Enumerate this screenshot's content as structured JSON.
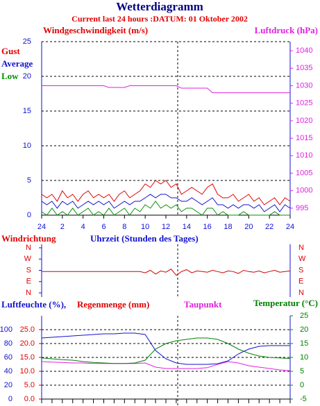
{
  "header": {
    "title": "Wetterdiagramm",
    "subtitle": "Current last 24 hours :DATUM: 01 Oktober 2002"
  },
  "chart_data": [
    {
      "type": "line",
      "y_label": "Windgeschwindigkeit (m/s)",
      "x": [
        0,
        0.5,
        1,
        1.5,
        2,
        2.5,
        3,
        3.5,
        4,
        4.5,
        5,
        5.5,
        6,
        6.5,
        7,
        7.5,
        8,
        8.5,
        9,
        9.5,
        10,
        10.5,
        11,
        11.5,
        12,
        12.5,
        13,
        13.5,
        14,
        14.5,
        15,
        15.5,
        16,
        16.5,
        17,
        17.5,
        18,
        18.5,
        19,
        19.5,
        20,
        20.5,
        21,
        21.5,
        22,
        22.5,
        23,
        23.5,
        24
      ],
      "xlim": [
        0,
        24
      ],
      "xticks": [
        {
          "value": 0,
          "label": "24"
        },
        2,
        4,
        6,
        8,
        10,
        12,
        14,
        16,
        18,
        20,
        22,
        24
      ],
      "ylim": [
        0,
        25
      ],
      "yticks": [
        0,
        5,
        10,
        15,
        20,
        25
      ],
      "y2lim": [
        993,
        1042.6
      ],
      "y2ticks": [
        995,
        1000,
        1005,
        1010,
        1015,
        1020,
        1025,
        1030,
        1035,
        1040
      ],
      "grid": true,
      "series": [
        {
          "name": "Gust",
          "color": "#e00000",
          "values": [
            3,
            2.5,
            3,
            2,
            3.5,
            2.5,
            3,
            2,
            3,
            3.5,
            2.5,
            3,
            2.5,
            3,
            2,
            3,
            3.5,
            2.5,
            3,
            3.5,
            4.5,
            4,
            5,
            4.5,
            5,
            4,
            4.5,
            3,
            3.5,
            4,
            3.5,
            3,
            4,
            4.5,
            3,
            2.5,
            2.5,
            3,
            2,
            2.5,
            3,
            2,
            2.5,
            1.5,
            2,
            2.5,
            1.5,
            2.5,
            2
          ]
        },
        {
          "name": "Average",
          "color": "#1010d0",
          "values": [
            2,
            1.5,
            2,
            1,
            2,
            1.5,
            2,
            1,
            1.5,
            2,
            1.5,
            2,
            1.5,
            2,
            1,
            1.5,
            2,
            1.5,
            2,
            2,
            2.5,
            3,
            2.5,
            3,
            3,
            2.5,
            2.5,
            2,
            2,
            2.5,
            2,
            1.5,
            2,
            2.5,
            1.5,
            1.5,
            1,
            1.5,
            1,
            1.5,
            1.5,
            1,
            1.5,
            0.5,
            1,
            1.5,
            0.5,
            1.5,
            1
          ]
        },
        {
          "name": "Low",
          "color": "#009000",
          "values": [
            0.5,
            0,
            1,
            0,
            0.5,
            0,
            1,
            0,
            0.5,
            1,
            0,
            0.5,
            0,
            1,
            0,
            0.5,
            1,
            0,
            1,
            0.5,
            1.5,
            1,
            2,
            1,
            1.5,
            1,
            1.5,
            0.5,
            1,
            1,
            0.5,
            0,
            1,
            1,
            0,
            0.5,
            0,
            0,
            0,
            0.5,
            0,
            0,
            0,
            0,
            0,
            0.5,
            0,
            0,
            0
          ]
        },
        {
          "name": "Luftdruck (hPa)",
          "color": "#e020e0",
          "axis": "y2",
          "values": [
            1030,
            1030,
            1030,
            1030,
            1030,
            1030,
            1030,
            1030,
            1030,
            1030,
            1030,
            1030,
            1030,
            1029.5,
            1029.5,
            1029.5,
            1029.5,
            1030,
            1030,
            1030,
            1030,
            1030,
            1030,
            1030,
            1030,
            1030,
            1030,
            1029.3,
            1029.3,
            1029.3,
            1029.3,
            1029.3,
            1029.3,
            1028,
            1028,
            1028,
            1028,
            1028,
            1028,
            1028,
            1028,
            1028,
            1028,
            1028,
            1028,
            1028,
            1028,
            1028,
            1028
          ]
        }
      ]
    },
    {
      "type": "line",
      "y_label": "Windrichtung",
      "x_label": "Uhrzeit (Stunden des Tages)",
      "x": [
        0,
        0.5,
        1,
        1.5,
        2,
        2.5,
        3,
        3.5,
        4,
        4.5,
        5,
        5.5,
        6,
        6.5,
        7,
        7.5,
        8,
        8.5,
        9,
        9.5,
        10,
        10.5,
        11,
        11.5,
        12,
        12.5,
        13,
        13.5,
        14,
        14.5,
        15,
        15.5,
        16,
        16.5,
        17,
        17.5,
        18,
        18.5,
        19,
        19.5,
        20,
        20.5,
        21,
        21.5,
        22,
        22.5,
        23,
        23.5,
        24
      ],
      "xlim": [
        0,
        24
      ],
      "ylim": [
        0,
        360
      ],
      "yticks": [
        {
          "value": 360,
          "label": "N"
        },
        {
          "value": 270,
          "label": "W"
        },
        {
          "value": 180,
          "label": "S"
        },
        {
          "value": 90,
          "label": "E"
        },
        {
          "value": 0,
          "label": "N"
        }
      ],
      "color": "#d00000",
      "values": [
        170,
        170,
        170,
        170,
        170,
        170,
        170,
        170,
        170,
        170,
        170,
        170,
        170,
        170,
        170,
        170,
        170,
        170,
        170,
        170,
        160,
        180,
        150,
        175,
        165,
        190,
        140,
        170,
        185,
        160,
        175,
        170,
        165,
        180,
        170,
        160,
        175,
        170,
        155,
        180,
        170,
        165,
        175,
        160,
        170,
        180,
        165,
        170,
        175
      ]
    },
    {
      "type": "line",
      "rain_label": "Regenmenge (mm)",
      "x": [
        0,
        1,
        2,
        3,
        4,
        5,
        6,
        7,
        8,
        9,
        10,
        11,
        12,
        13,
        14,
        15,
        16,
        17,
        18,
        19,
        20,
        21,
        22,
        23,
        24
      ],
      "xlim": [
        0,
        24
      ],
      "ylim": [
        0,
        120
      ],
      "yticks": [
        0,
        20,
        40,
        60,
        80,
        100
      ],
      "rain_ylim": [
        0,
        30
      ],
      "rain_yticks": [
        {
          "value": 0,
          "label": "0.0"
        },
        {
          "value": 5,
          "label": "5.0"
        },
        {
          "value": 10,
          "label": "10.0"
        },
        {
          "value": 15,
          "label": "15.0"
        },
        {
          "value": 20,
          "label": "20.0"
        },
        {
          "value": 25,
          "label": "25.0"
        }
      ],
      "y2lim": [
        -5,
        25
      ],
      "y2ticks": [
        -5,
        0,
        5,
        10,
        15,
        20,
        25
      ],
      "series": [
        {
          "name": "Luftfeuchte (%),",
          "color": "#1010d0",
          "values": [
            88,
            89,
            90,
            91,
            92,
            93,
            94,
            94,
            95,
            95,
            93,
            70,
            58,
            52,
            50,
            50,
            50,
            51,
            55,
            65,
            72,
            76,
            77,
            77,
            77
          ]
        },
        {
          "name": "Taupunkt",
          "color": "#e020e0",
          "axis": "y2",
          "values": [
            8.5,
            8.3,
            8.2,
            8,
            8,
            7.8,
            7.8,
            7.8,
            7.8,
            7.8,
            8,
            6.5,
            6,
            6,
            6,
            6,
            6.3,
            7.5,
            8.5,
            8,
            7,
            6.5,
            6,
            5.5,
            5.2
          ]
        },
        {
          "name": "Temperatur (°C)",
          "color": "#008000",
          "axis": "y2",
          "values": [
            9.8,
            9.5,
            9.2,
            9,
            8.5,
            8.2,
            8,
            7.8,
            7.8,
            8,
            9,
            13,
            15,
            16,
            16.5,
            17,
            17,
            16.5,
            15,
            13,
            11.5,
            10.5,
            10,
            9.8,
            9.6
          ]
        }
      ]
    }
  ]
}
